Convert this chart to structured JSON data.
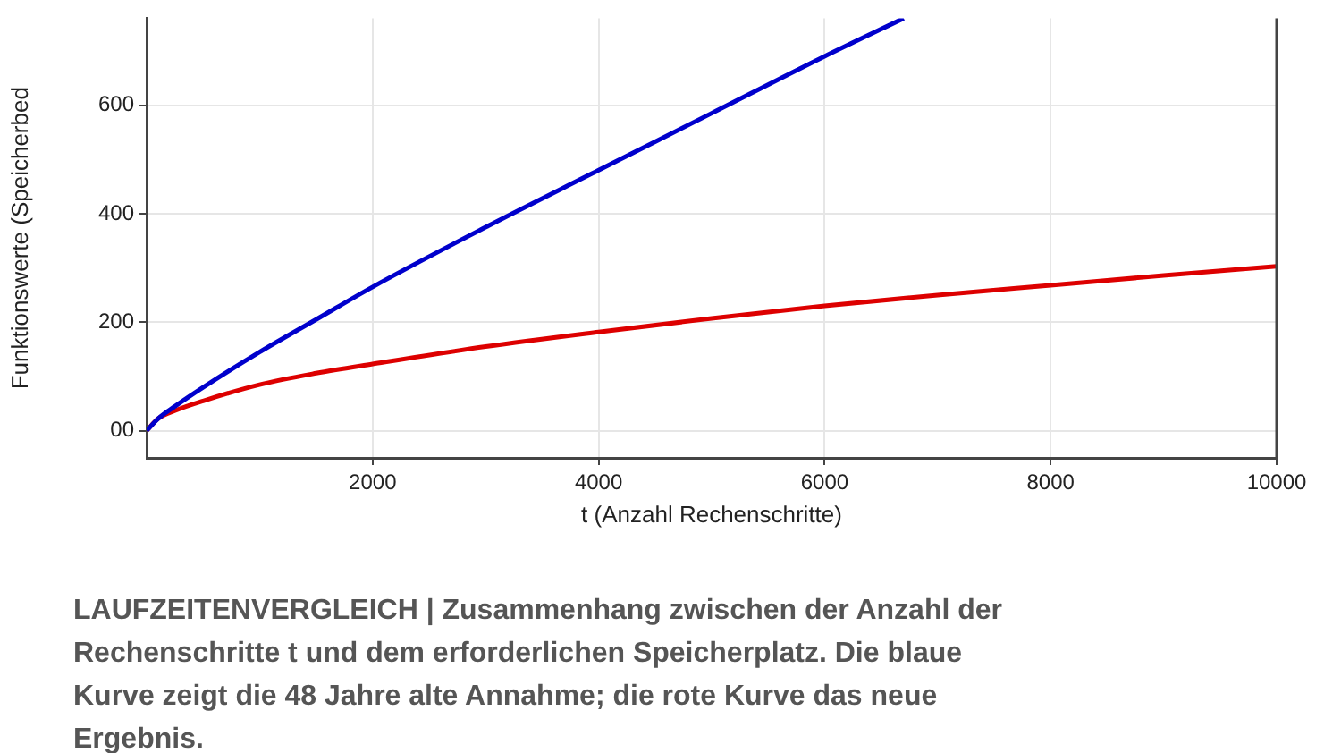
{
  "chart_data": {
    "type": "line",
    "xlabel": "t (Anzahl Rechenschritte)",
    "ylabel": "Funktionswerte (Speicherbed",
    "xlim": [
      0,
      10000
    ],
    "xticks": [
      2000,
      4000,
      6000,
      8000,
      10000
    ],
    "ylim": [
      -50,
      760
    ],
    "yticks": [
      {
        "value": 0,
        "label": "00"
      },
      200,
      400,
      600
    ],
    "grid": true,
    "legend": false,
    "marker": "none",
    "line_style": "solid",
    "series": [
      {
        "color": "#0000cc",
        "x": [
          0,
          100,
          250,
          500,
          1000,
          1500,
          2000,
          3000,
          4000,
          5000,
          6000,
          6700
        ],
        "values": [
          0,
          22,
          45,
          80,
          145,
          205,
          265,
          375,
          480,
          585,
          690,
          760
        ]
      },
      {
        "color": "#dd0000",
        "x": [
          0,
          100,
          250,
          500,
          1000,
          1500,
          2000,
          3000,
          4000,
          5000,
          6000,
          7000,
          8000,
          9000,
          10000
        ],
        "values": [
          0,
          22,
          37,
          55,
          85,
          106,
          123,
          155,
          182,
          207,
          230,
          250,
          268,
          286,
          303
        ]
      }
    ],
    "annotations": [
      "LAUFZEITENVERGLEICH | Zusammenhang zwischen der Anzahl der Rechenschritte t und dem erforderlichen Speicherplatz. Die blaue Kurve zeigt die 48 Jahre alte Annahme; die rote Kurve das neue Ergebnis."
    ]
  }
}
